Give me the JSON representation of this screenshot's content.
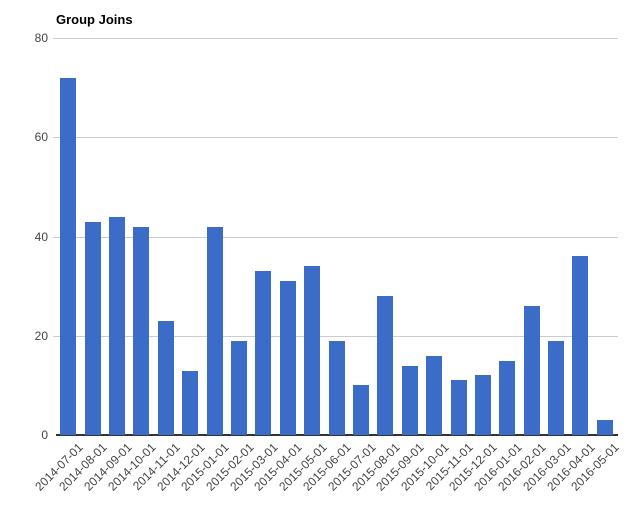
{
  "chart_data": {
    "type": "bar",
    "title": "Group Joins",
    "categories": [
      "2014-07-01",
      "2014-08-01",
      "2014-09-01",
      "2014-10-01",
      "2014-11-01",
      "2014-12-01",
      "2015-01-01",
      "2015-02-01",
      "2015-03-01",
      "2015-04-01",
      "2015-05-01",
      "2015-06-01",
      "2015-07-01",
      "2015-08-01",
      "2015-09-01",
      "2015-10-01",
      "2015-11-01",
      "2015-12-01",
      "2016-01-01",
      "2016-02-01",
      "2016-03-01",
      "2016-04-01",
      "2016-05-01"
    ],
    "values": [
      72,
      43,
      44,
      42,
      23,
      13,
      42,
      19,
      33,
      31,
      34,
      19,
      10,
      28,
      14,
      16,
      11,
      12,
      15,
      26,
      19,
      36,
      3
    ],
    "xlabel": "",
    "ylabel": "",
    "ylim": [
      0,
      80
    ],
    "yticks": [
      0,
      20,
      40,
      60,
      80
    ],
    "grid": true,
    "legend": "none",
    "x_label_rotation_deg": -45,
    "colors": {
      "bar": "#3b6cc8",
      "gridline": "#cccccc",
      "baseline": "#333333",
      "axis_label": "#444444",
      "title": "#000000",
      "background": "#ffffff"
    }
  }
}
